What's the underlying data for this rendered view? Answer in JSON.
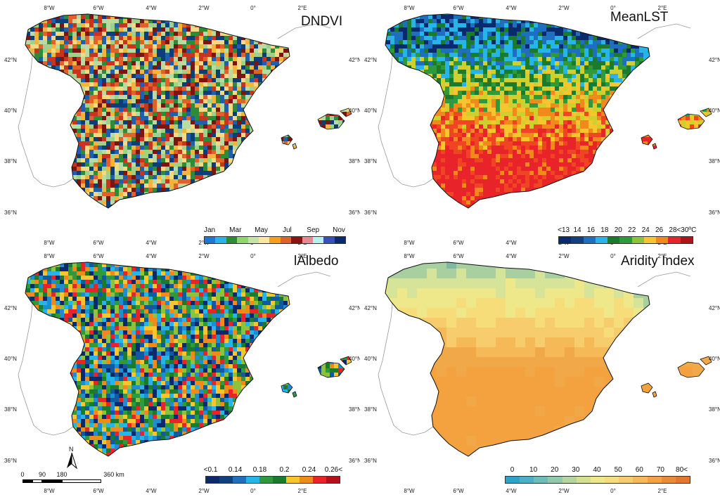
{
  "panels": [
    {
      "title": "DNDVI",
      "palette": [
        "#f2b43a",
        "#f6d982",
        "#b7dba3",
        "#9fd08c",
        "#2e8b3a",
        "#1f5fae",
        "#0c3f7a",
        "#e2612a",
        "#c9341e",
        "#7a1511"
      ],
      "legend": {
        "labels": [
          "Jan",
          "Mar",
          "May",
          "Jul",
          "Sep",
          "Nov"
        ],
        "colors": [
          "#1f77d4",
          "#27b4e8",
          "#2e8b3a",
          "#8fd66f",
          "#c6e2a8",
          "#f7e6a5",
          "#f4a01b",
          "#e2612a",
          "#8a1414",
          "#e58a93",
          "#b8f0ec",
          "#3a4fb8",
          "#0b2a6e"
        ]
      }
    },
    {
      "title": "MeanLST",
      "palette": [
        "#e8232a",
        "#f04522",
        "#f28a1b",
        "#f7c52d",
        "#cfcf2e",
        "#2e9a3b",
        "#1a7a2e",
        "#27b4e8",
        "#1f6fbf",
        "#0b2a6e"
      ],
      "legend": {
        "labels": [
          "<13",
          "14",
          "16",
          "18",
          "20",
          "22",
          "24",
          "26",
          "28",
          "<30ºC"
        ],
        "colors": [
          "#0b2a6e",
          "#12407f",
          "#1f6fbf",
          "#27b4e8",
          "#1a7a2e",
          "#2e9a3b",
          "#8fc23c",
          "#f7c52d",
          "#f28a1b",
          "#e8232a",
          "#b3121b"
        ]
      }
    },
    {
      "title": "lAlbedo",
      "palette": [
        "#1f8ed1",
        "#27b4e8",
        "#0f5aa0",
        "#2e9a3b",
        "#1a7a2e",
        "#8fc23c",
        "#f7c52d",
        "#f28a1b",
        "#e8232a",
        "#0b2a6e"
      ],
      "legend": {
        "labels": [
          "<0.1",
          "0.14",
          "0.18",
          "0.2",
          "0.24",
          "0.26<"
        ],
        "colors": [
          "#0b2a6e",
          "#12407f",
          "#1f6fbf",
          "#27b4e8",
          "#2e9a3b",
          "#1a7a2e",
          "#f7c52d",
          "#f28a1b",
          "#e8232a",
          "#b3121b"
        ]
      }
    },
    {
      "title": "Aridity Index",
      "palette": [
        "#f3a23f",
        "#f0a849",
        "#f5b958",
        "#f7cc6c",
        "#f6dd7a",
        "#eee88a",
        "#d6e49a",
        "#a8cfa0",
        "#7fb9a6",
        "#6fa9c7"
      ],
      "legend": {
        "labels": [
          "0",
          "10",
          "20",
          "30",
          "40",
          "50",
          "60",
          "70",
          "80<"
        ],
        "colors": [
          "#2aa3c9",
          "#4bb0c6",
          "#6fbcb9",
          "#93c9ab",
          "#b5d59e",
          "#d5e191",
          "#eee88a",
          "#f6dd7a",
          "#f7cc6c",
          "#f5b958",
          "#f3a23f",
          "#ed8b35",
          "#e4772c"
        ]
      }
    }
  ],
  "axes": {
    "lon_labels": [
      "8°W",
      "6°W",
      "4°W",
      "2°W",
      "0°",
      "2°E"
    ],
    "lat_labels": [
      "42°N",
      "40°N",
      "38°N",
      "36°N"
    ]
  },
  "scale": {
    "labels": [
      "0",
      "90",
      "180",
      "360 km"
    ],
    "north": "N"
  },
  "colors": {
    "land_outline": "#111111",
    "neighbor_outline": "#9a9a9a"
  }
}
